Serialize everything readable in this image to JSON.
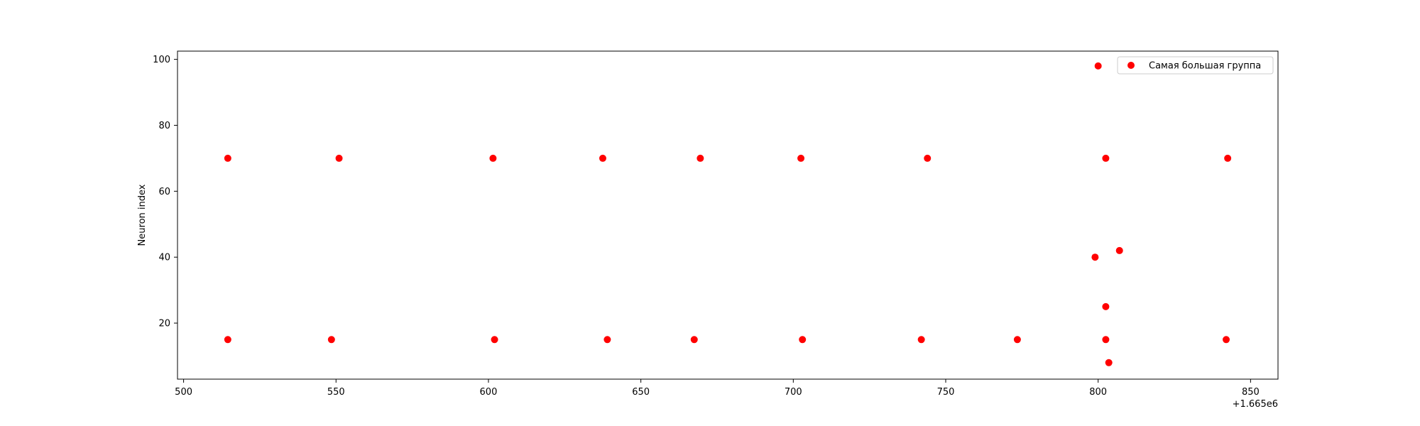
{
  "chart_data": {
    "type": "scatter",
    "title": "",
    "xlabel": "",
    "ylabel": "Neuron index",
    "offset_label": "+1.665e6",
    "xlim": [
      498,
      859
    ],
    "ylim": [
      3,
      102.5
    ],
    "xticks": [
      500,
      550,
      600,
      650,
      700,
      750,
      800,
      850
    ],
    "yticks": [
      20,
      40,
      60,
      80,
      100
    ],
    "grid": false,
    "legend_position": "top-right",
    "color": "#ff0000",
    "series": [
      {
        "name": "Самая большая группа",
        "points": [
          {
            "x": 514.5,
            "y": 70
          },
          {
            "x": 551,
            "y": 70
          },
          {
            "x": 601.5,
            "y": 70
          },
          {
            "x": 637.5,
            "y": 70
          },
          {
            "x": 669.5,
            "y": 70
          },
          {
            "x": 702.5,
            "y": 70
          },
          {
            "x": 744,
            "y": 70
          },
          {
            "x": 802.5,
            "y": 70
          },
          {
            "x": 842.5,
            "y": 70
          },
          {
            "x": 514.5,
            "y": 15
          },
          {
            "x": 548.5,
            "y": 15
          },
          {
            "x": 602,
            "y": 15
          },
          {
            "x": 639,
            "y": 15
          },
          {
            "x": 667.5,
            "y": 15
          },
          {
            "x": 703,
            "y": 15
          },
          {
            "x": 742,
            "y": 15
          },
          {
            "x": 773.5,
            "y": 15
          },
          {
            "x": 802.5,
            "y": 15
          },
          {
            "x": 842,
            "y": 15
          },
          {
            "x": 800,
            "y": 98
          },
          {
            "x": 799,
            "y": 40
          },
          {
            "x": 807,
            "y": 42
          },
          {
            "x": 802.5,
            "y": 25
          },
          {
            "x": 803.5,
            "y": 8
          }
        ]
      }
    ]
  }
}
